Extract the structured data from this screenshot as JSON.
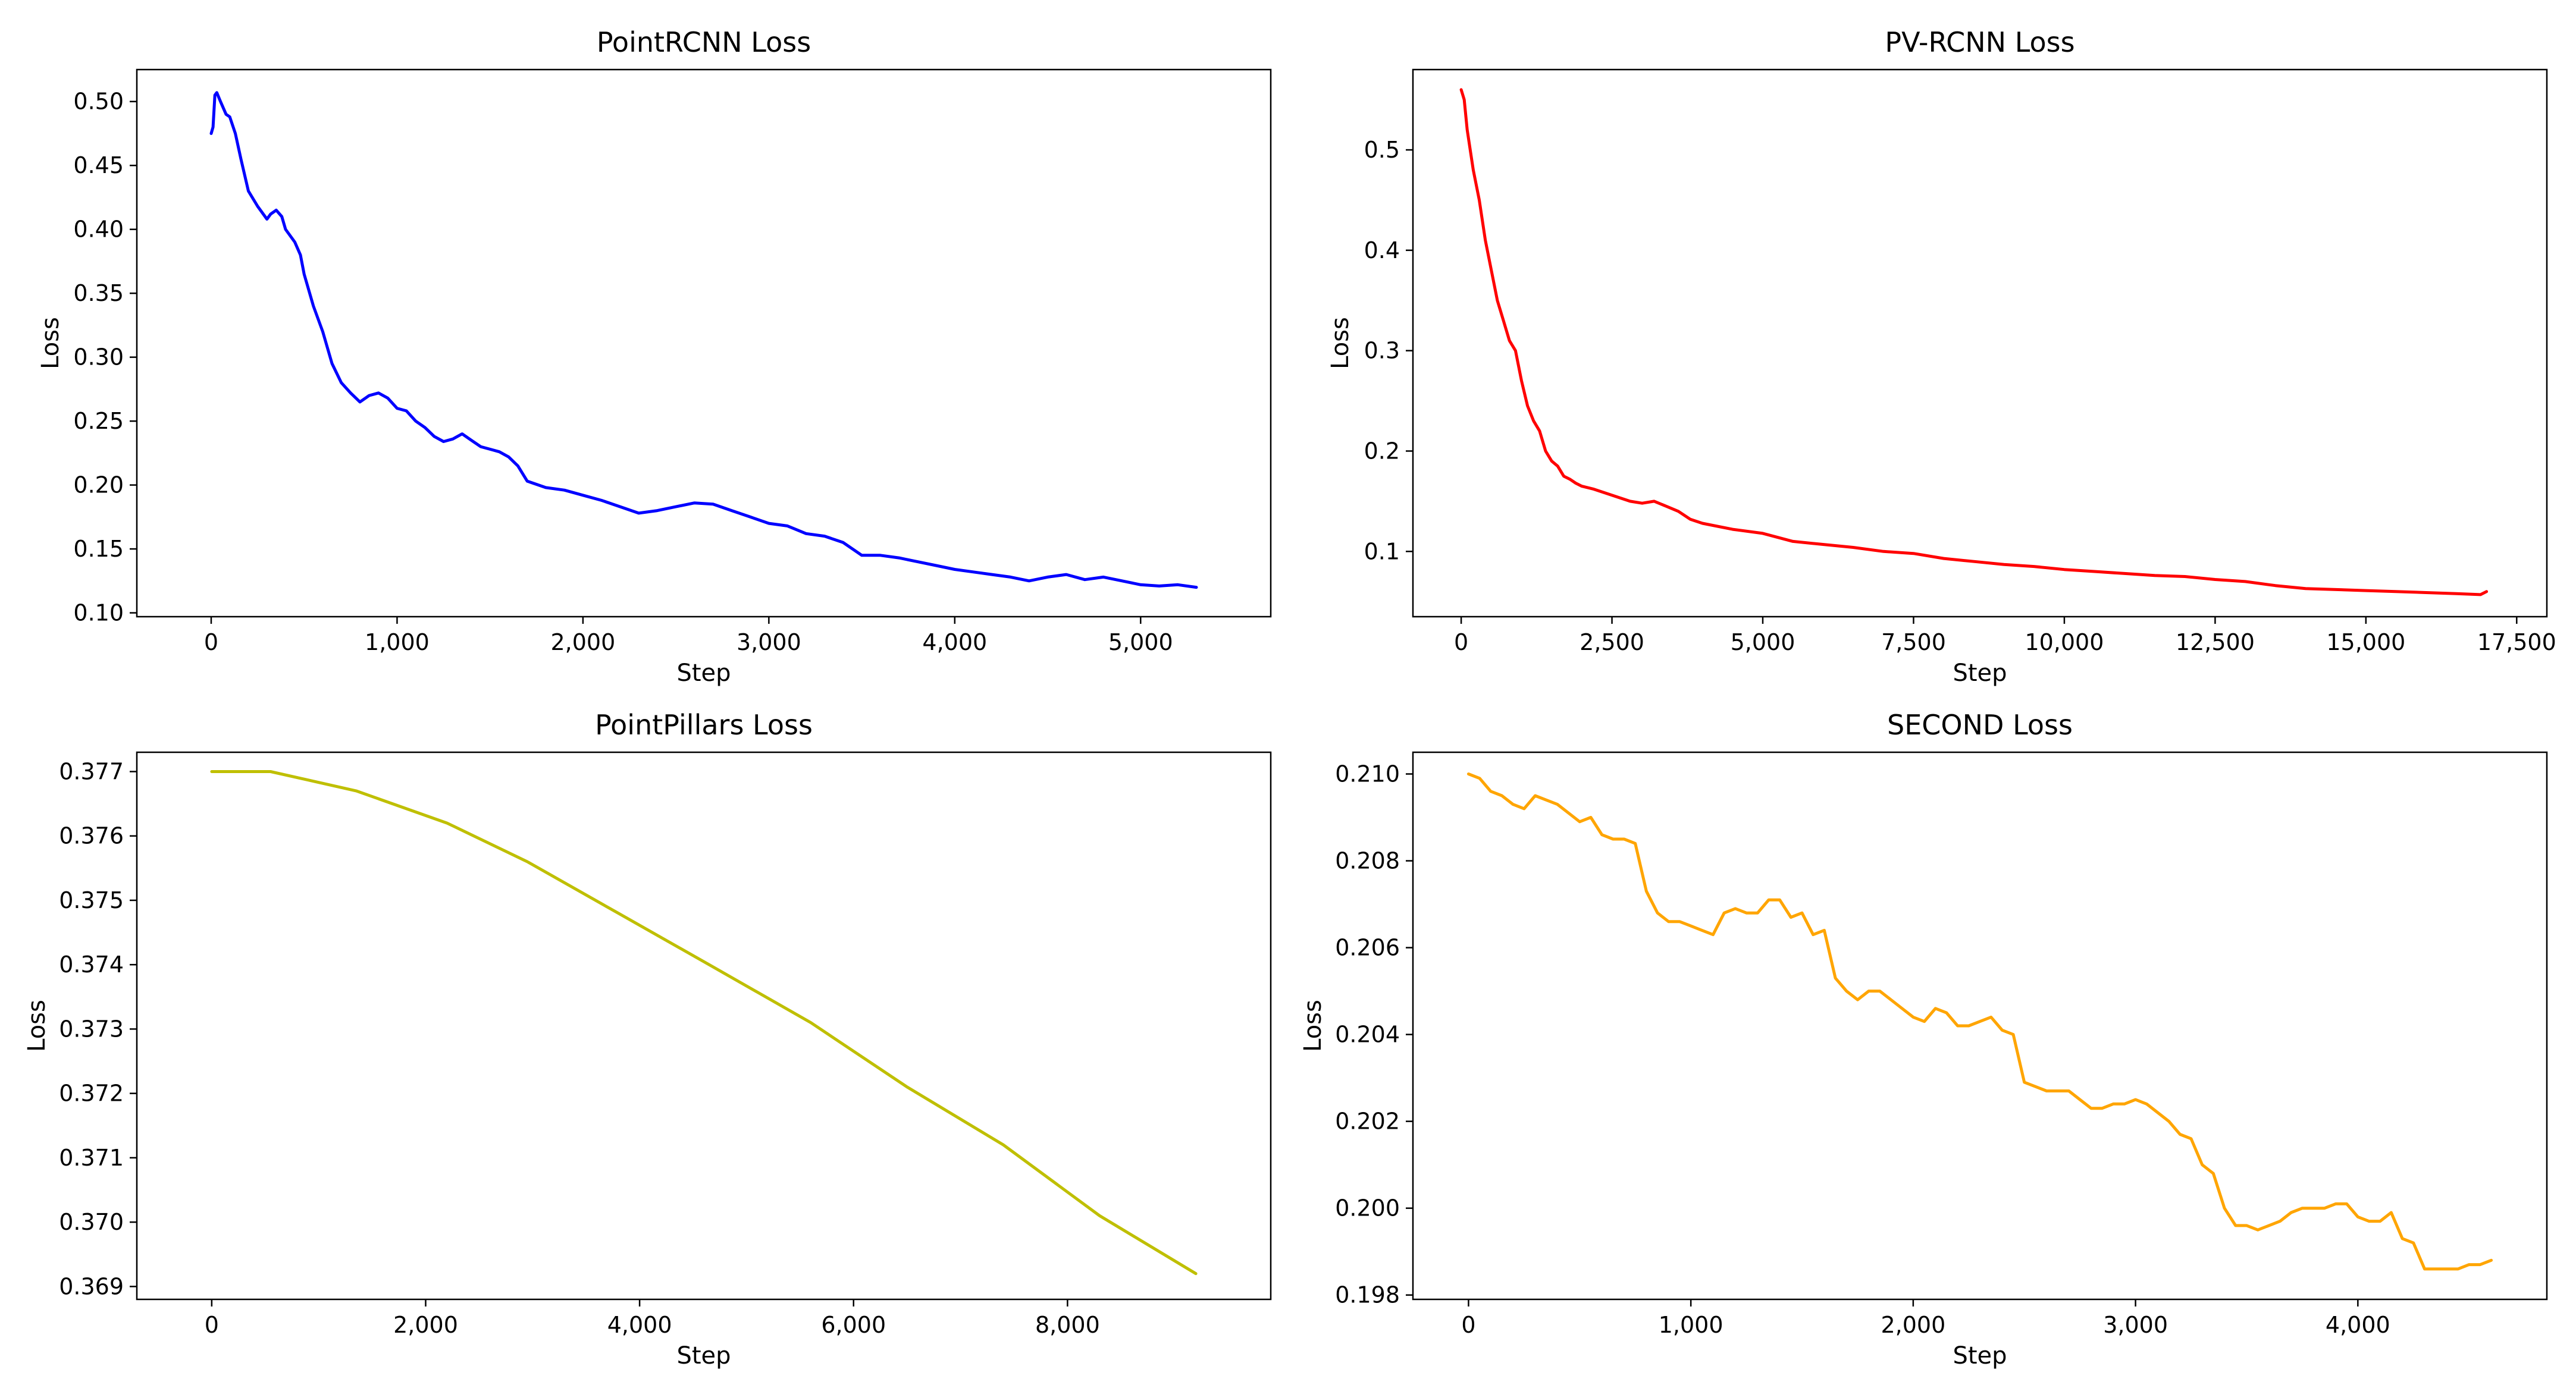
{
  "chart_data": [
    {
      "type": "line",
      "title": "PointRCNN Loss",
      "xlabel": "Step",
      "ylabel": "Loss",
      "xlim": [
        -400,
        5700
      ],
      "ylim": [
        0.097,
        0.525
      ],
      "xticks": [
        0,
        1000,
        2000,
        3000,
        4000,
        5000
      ],
      "xtick_labels": [
        "0",
        "1,000",
        "2,000",
        "3,000",
        "4,000",
        "5,000"
      ],
      "yticks": [
        0.1,
        0.15,
        0.2,
        0.25,
        0.3,
        0.35,
        0.4,
        0.45,
        0.5
      ],
      "ytick_labels": [
        "0.10",
        "0.15",
        "0.20",
        "0.25",
        "0.30",
        "0.35",
        "0.40",
        "0.45",
        "0.50"
      ],
      "color": "#0000ff",
      "grid": false,
      "series": [
        {
          "name": "PointRCNN",
          "x": [
            0,
            10,
            20,
            30,
            50,
            80,
            100,
            130,
            160,
            200,
            250,
            300,
            320,
            350,
            380,
            400,
            450,
            480,
            500,
            550,
            600,
            650,
            700,
            750,
            800,
            850,
            900,
            950,
            1000,
            1050,
            1100,
            1150,
            1200,
            1250,
            1300,
            1350,
            1400,
            1450,
            1500,
            1550,
            1600,
            1650,
            1700,
            1800,
            1900,
            2000,
            2100,
            2200,
            2300,
            2400,
            2500,
            2600,
            2700,
            2800,
            2900,
            3000,
            3100,
            3200,
            3300,
            3400,
            3500,
            3600,
            3700,
            3800,
            3900,
            4000,
            4100,
            4200,
            4300,
            4400,
            4500,
            4600,
            4700,
            4800,
            4900,
            5000,
            5100,
            5200,
            5300
          ],
          "values": [
            0.475,
            0.48,
            0.505,
            0.507,
            0.5,
            0.49,
            0.488,
            0.475,
            0.455,
            0.43,
            0.418,
            0.408,
            0.412,
            0.415,
            0.41,
            0.4,
            0.39,
            0.38,
            0.365,
            0.34,
            0.32,
            0.295,
            0.28,
            0.272,
            0.265,
            0.27,
            0.272,
            0.268,
            0.26,
            0.258,
            0.25,
            0.245,
            0.238,
            0.234,
            0.236,
            0.24,
            0.235,
            0.23,
            0.228,
            0.226,
            0.222,
            0.215,
            0.203,
            0.198,
            0.196,
            0.192,
            0.188,
            0.183,
            0.178,
            0.18,
            0.183,
            0.186,
            0.185,
            0.18,
            0.175,
            0.17,
            0.168,
            0.162,
            0.16,
            0.155,
            0.145,
            0.145,
            0.143,
            0.14,
            0.137,
            0.134,
            0.132,
            0.13,
            0.128,
            0.125,
            0.128,
            0.13,
            0.126,
            0.128,
            0.125,
            0.122,
            0.121,
            0.122,
            0.12
          ]
        }
      ]
    },
    {
      "type": "line",
      "title": "PV-RCNN Loss",
      "xlabel": "Step",
      "ylabel": "Loss",
      "xlim": [
        -800,
        18000
      ],
      "ylim": [
        0.035,
        0.58
      ],
      "xticks": [
        0,
        2500,
        5000,
        7500,
        10000,
        12500,
        15000,
        17500
      ],
      "xtick_labels": [
        "0",
        "2,500",
        "5,000",
        "7,500",
        "10,000",
        "12,500",
        "15,000",
        "17,500"
      ],
      "yticks": [
        0.1,
        0.2,
        0.3,
        0.4,
        0.5
      ],
      "ytick_labels": [
        "0.1",
        "0.2",
        "0.3",
        "0.4",
        "0.5"
      ],
      "color": "#ff0000",
      "grid": false,
      "series": [
        {
          "name": "PV-RCNN",
          "x": [
            0,
            50,
            100,
            200,
            300,
            400,
            500,
            600,
            700,
            800,
            900,
            1000,
            1100,
            1200,
            1300,
            1400,
            1500,
            1600,
            1700,
            1800,
            1900,
            2000,
            2200,
            2400,
            2600,
            2800,
            3000,
            3200,
            3400,
            3600,
            3800,
            4000,
            4500,
            5000,
            5500,
            6000,
            6500,
            7000,
            7500,
            8000,
            8500,
            9000,
            9500,
            10000,
            10500,
            11000,
            11500,
            12000,
            12500,
            13000,
            13500,
            14000,
            14500,
            15000,
            15500,
            16000,
            16500,
            16900,
            17000
          ],
          "values": [
            0.56,
            0.55,
            0.52,
            0.48,
            0.45,
            0.41,
            0.38,
            0.35,
            0.33,
            0.31,
            0.3,
            0.27,
            0.245,
            0.23,
            0.22,
            0.2,
            0.19,
            0.185,
            0.175,
            0.172,
            0.168,
            0.165,
            0.162,
            0.158,
            0.154,
            0.15,
            0.148,
            0.15,
            0.145,
            0.14,
            0.132,
            0.128,
            0.122,
            0.118,
            0.11,
            0.107,
            0.104,
            0.1,
            0.098,
            0.093,
            0.09,
            0.087,
            0.085,
            0.082,
            0.08,
            0.078,
            0.076,
            0.075,
            0.072,
            0.07,
            0.066,
            0.063,
            0.062,
            0.061,
            0.06,
            0.059,
            0.058,
            0.057,
            0.06
          ]
        }
      ]
    },
    {
      "type": "line",
      "title": "PointPillars Loss",
      "xlabel": "Step",
      "ylabel": "Loss",
      "xlim": [
        -700,
        9900
      ],
      "ylim": [
        0.3688,
        0.3773
      ],
      "xticks": [
        0,
        2000,
        4000,
        6000,
        8000
      ],
      "xtick_labels": [
        "0",
        "2,000",
        "4,000",
        "6,000",
        "8,000"
      ],
      "yticks": [
        0.369,
        0.37,
        0.371,
        0.372,
        0.373,
        0.374,
        0.375,
        0.376,
        0.377
      ],
      "ytick_labels": [
        "0.369",
        "0.370",
        "0.371",
        "0.372",
        "0.373",
        "0.374",
        "0.375",
        "0.376",
        "0.377"
      ],
      "color": "#bfbf00",
      "grid": false,
      "series": [
        {
          "name": "PointPillars",
          "x": [
            0,
            550,
            1350,
            2200,
            2950,
            3800,
            4650,
            5600,
            6500,
            7400,
            8300,
            9200
          ],
          "values": [
            0.377,
            0.377,
            0.3767,
            0.3762,
            0.3756,
            0.3748,
            0.374,
            0.3731,
            0.3721,
            0.3712,
            0.3701,
            0.3692
          ]
        }
      ]
    },
    {
      "type": "line",
      "title": "SECOND Loss",
      "xlabel": "Step",
      "ylabel": "Loss",
      "xlim": [
        -250,
        4850
      ],
      "ylim": [
        0.1979,
        0.2105
      ],
      "xticks": [
        0,
        1000,
        2000,
        3000,
        4000
      ],
      "xtick_labels": [
        "0",
        "1,000",
        "2,000",
        "3,000",
        "4,000"
      ],
      "yticks": [
        0.198,
        0.2,
        0.202,
        0.204,
        0.206,
        0.208,
        0.21
      ],
      "ytick_labels": [
        "0.198",
        "0.200",
        "0.202",
        "0.204",
        "0.206",
        "0.208",
        "0.210"
      ],
      "color": "#ffa500",
      "grid": false,
      "series": [
        {
          "name": "SECOND",
          "x": [
            0,
            50,
            100,
            150,
            200,
            250,
            300,
            350,
            400,
            450,
            500,
            550,
            600,
            650,
            700,
            750,
            800,
            850,
            900,
            950,
            1000,
            1050,
            1100,
            1150,
            1200,
            1250,
            1300,
            1350,
            1400,
            1450,
            1500,
            1550,
            1600,
            1650,
            1700,
            1750,
            1800,
            1850,
            1900,
            1950,
            2000,
            2050,
            2100,
            2150,
            2200,
            2250,
            2300,
            2350,
            2400,
            2450,
            2500,
            2550,
            2600,
            2650,
            2700,
            2750,
            2800,
            2850,
            2900,
            2950,
            3000,
            3050,
            3100,
            3150,
            3200,
            3250,
            3300,
            3350,
            3400,
            3450,
            3500,
            3550,
            3600,
            3650,
            3700,
            3750,
            3800,
            3850,
            3900,
            3950,
            4000,
            4050,
            4100,
            4150,
            4200,
            4250,
            4300,
            4350,
            4400,
            4450,
            4500,
            4550,
            4600
          ],
          "values": [
            0.21,
            0.2099,
            0.2096,
            0.2095,
            0.2093,
            0.2092,
            0.2095,
            0.2094,
            0.2093,
            0.2091,
            0.2089,
            0.209,
            0.2086,
            0.2085,
            0.2085,
            0.2084,
            0.2073,
            0.2068,
            0.2066,
            0.2066,
            0.2065,
            0.2064,
            0.2063,
            0.2068,
            0.2069,
            0.2068,
            0.2068,
            0.2071,
            0.2071,
            0.2067,
            0.2068,
            0.2063,
            0.2064,
            0.2053,
            0.205,
            0.2048,
            0.205,
            0.205,
            0.2048,
            0.2046,
            0.2044,
            0.2043,
            0.2046,
            0.2045,
            0.2042,
            0.2042,
            0.2043,
            0.2044,
            0.2041,
            0.204,
            0.2029,
            0.2028,
            0.2027,
            0.2027,
            0.2027,
            0.2025,
            0.2023,
            0.2023,
            0.2024,
            0.2024,
            0.2025,
            0.2024,
            0.2022,
            0.202,
            0.2017,
            0.2016,
            0.201,
            0.2008,
            0.2,
            0.1996,
            0.1996,
            0.1995,
            0.1996,
            0.1997,
            0.1999,
            0.2,
            0.2,
            0.2,
            0.2001,
            0.2001,
            0.1998,
            0.1997,
            0.1997,
            0.1999,
            0.1993,
            0.1992,
            0.1986,
            0.1986,
            0.1986,
            0.1986,
            0.1987,
            0.1987,
            0.1988
          ]
        }
      ]
    }
  ]
}
